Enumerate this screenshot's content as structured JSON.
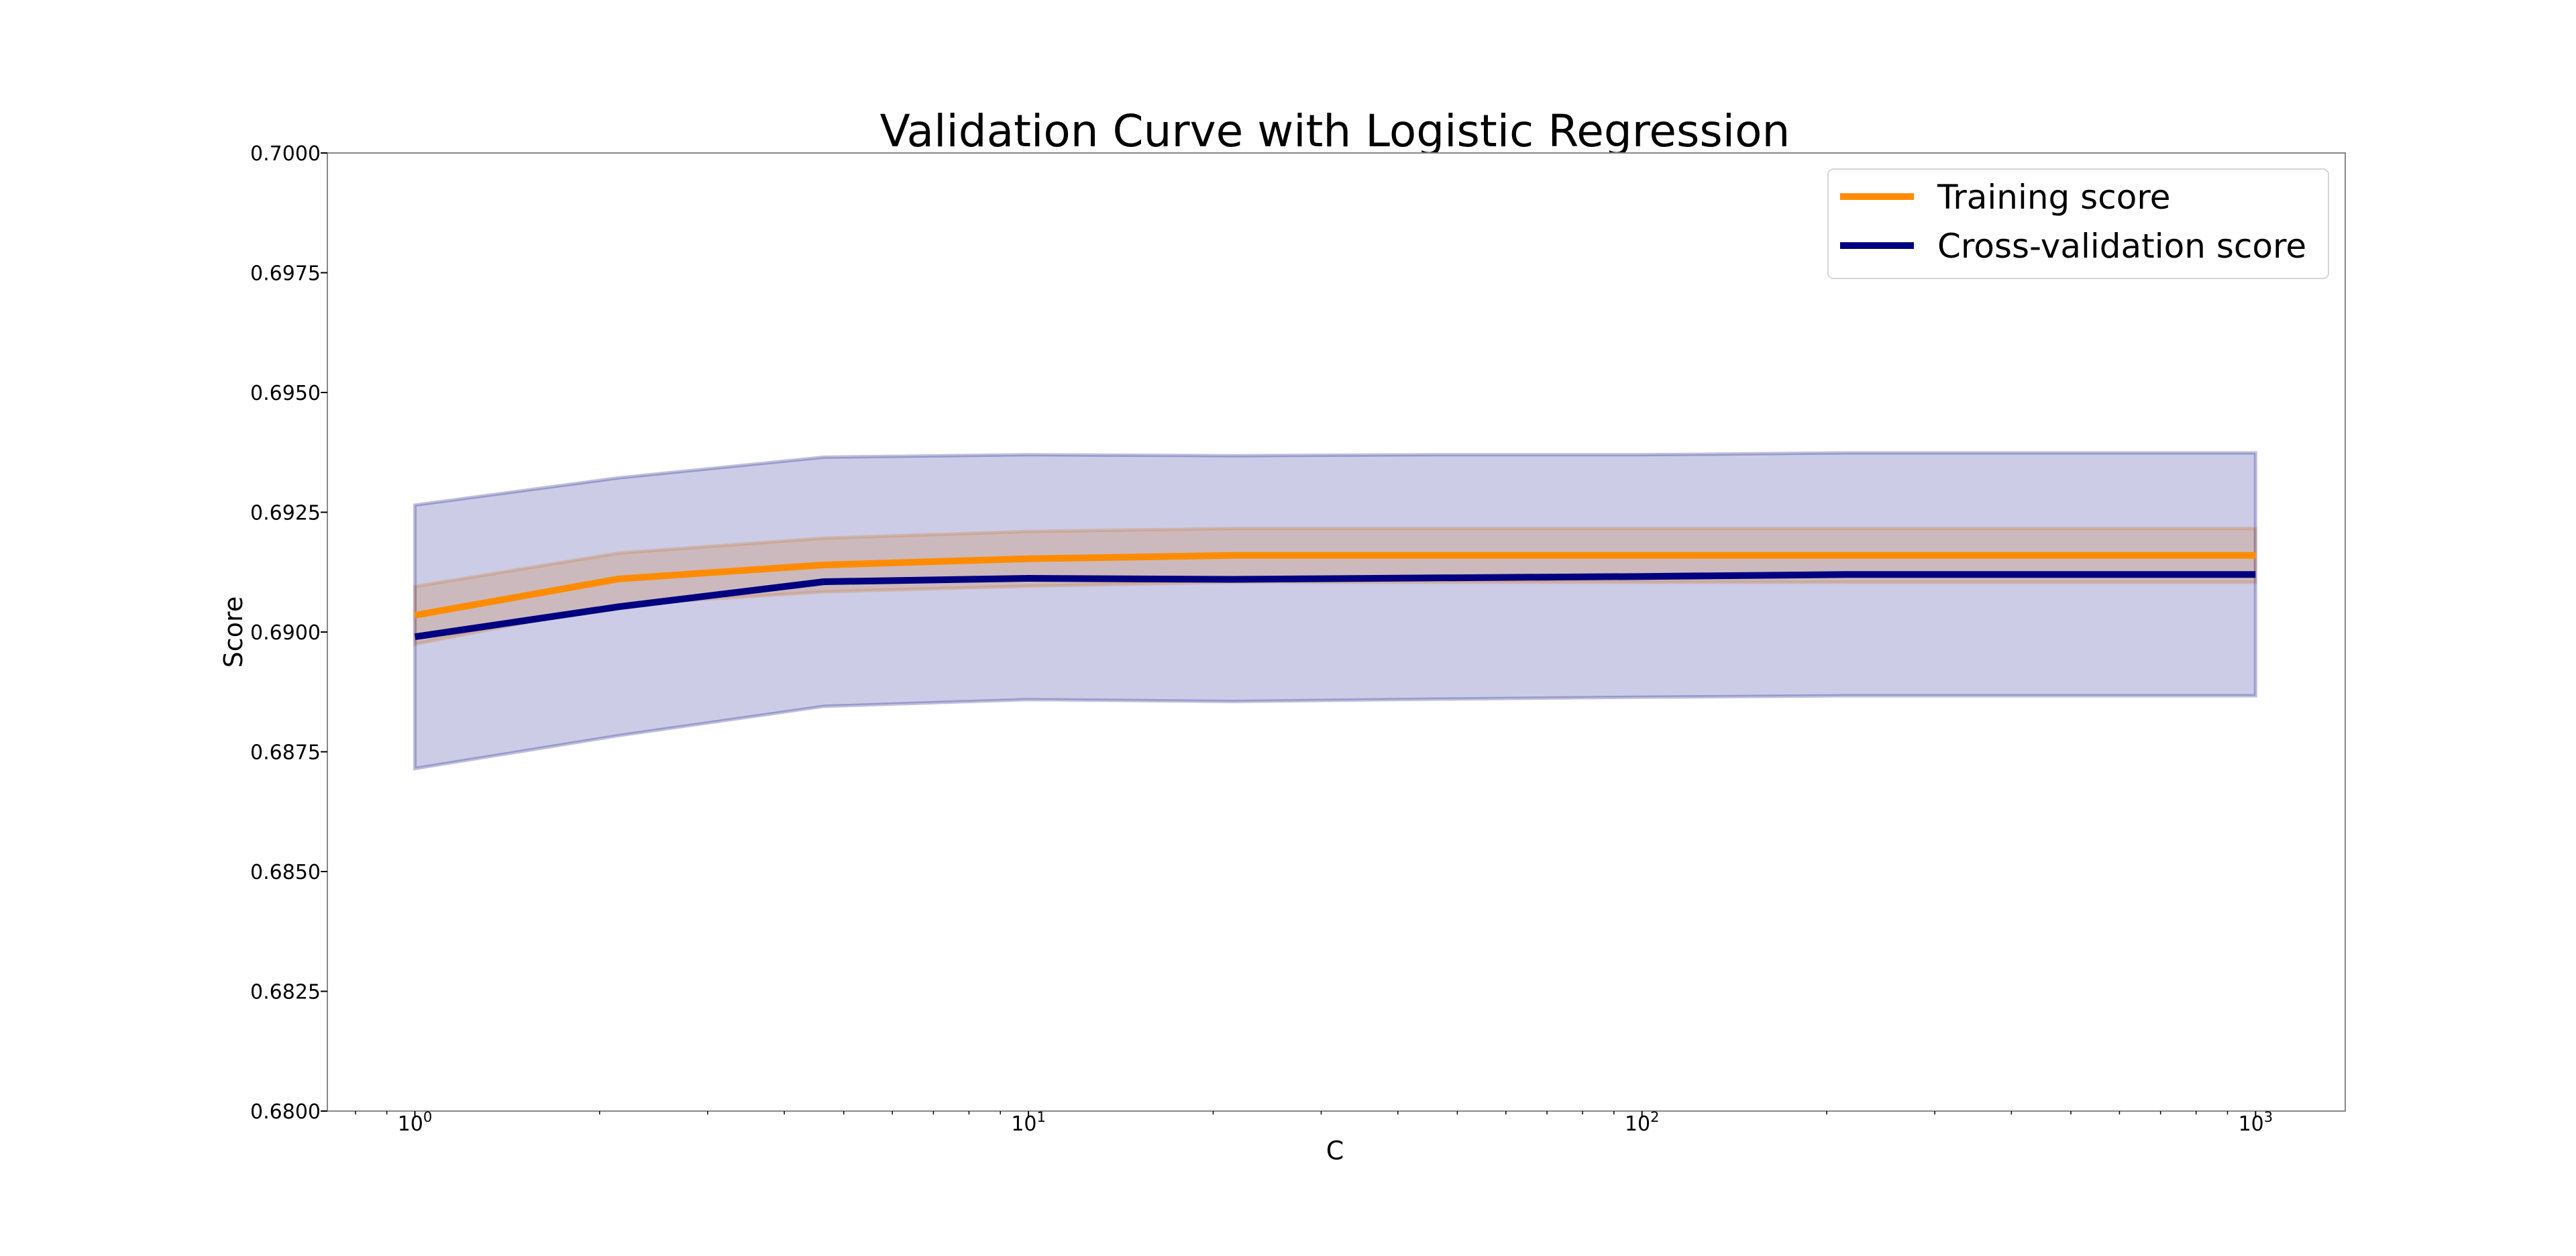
{
  "chart_data": {
    "type": "line",
    "title": "Validation Curve with Logistic Regression",
    "xlabel": "C",
    "ylabel": "Score",
    "xscale": "log",
    "xlim": [
      0.72,
      1400
    ],
    "ylim": [
      0.68,
      0.7
    ],
    "x_ticks": [
      {
        "base": "10",
        "exp": "0",
        "value": 1
      },
      {
        "base": "10",
        "exp": "1",
        "value": 10
      },
      {
        "base": "10",
        "exp": "2",
        "value": 100
      },
      {
        "base": "10",
        "exp": "3",
        "value": 1000
      }
    ],
    "y_ticks": [
      "0.6800",
      "0.6825",
      "0.6850",
      "0.6875",
      "0.6900",
      "0.6925",
      "0.6950",
      "0.6975",
      "0.7000"
    ],
    "grid": false,
    "legend_position": "upper-right",
    "x": [
      1,
      2.154,
      4.642,
      10,
      21.54,
      46.42,
      100,
      215.4,
      464.2,
      1000
    ],
    "series": [
      {
        "name": "Training score",
        "color": "#ff8c00",
        "values": [
          0.69035,
          0.69111,
          0.6914,
          0.69153,
          0.6916,
          0.6916,
          0.6916,
          0.6916,
          0.6916,
          0.6916
        ],
        "band_upper": [
          0.69095,
          0.69165,
          0.69196,
          0.6921,
          0.69216,
          0.69216,
          0.69216,
          0.69216,
          0.69216,
          0.69216
        ],
        "band_lower": [
          0.68975,
          0.69057,
          0.69084,
          0.69096,
          0.69104,
          0.69104,
          0.69104,
          0.69104,
          0.69104,
          0.69104
        ],
        "band_color": "#ff8c00"
      },
      {
        "name": "Cross-validation score",
        "color": "#000080",
        "values": [
          0.6899,
          0.69053,
          0.69105,
          0.69112,
          0.6911,
          0.69113,
          0.69116,
          0.6912,
          0.6912,
          0.6912
        ],
        "band_upper": [
          0.69265,
          0.69322,
          0.69365,
          0.6937,
          0.69368,
          0.6937,
          0.6937,
          0.69374,
          0.69374,
          0.69374
        ],
        "band_lower": [
          0.68715,
          0.68784,
          0.68845,
          0.68859,
          0.68855,
          0.6886,
          0.68864,
          0.68867,
          0.68867,
          0.68867
        ],
        "band_color": "#000080"
      }
    ]
  }
}
